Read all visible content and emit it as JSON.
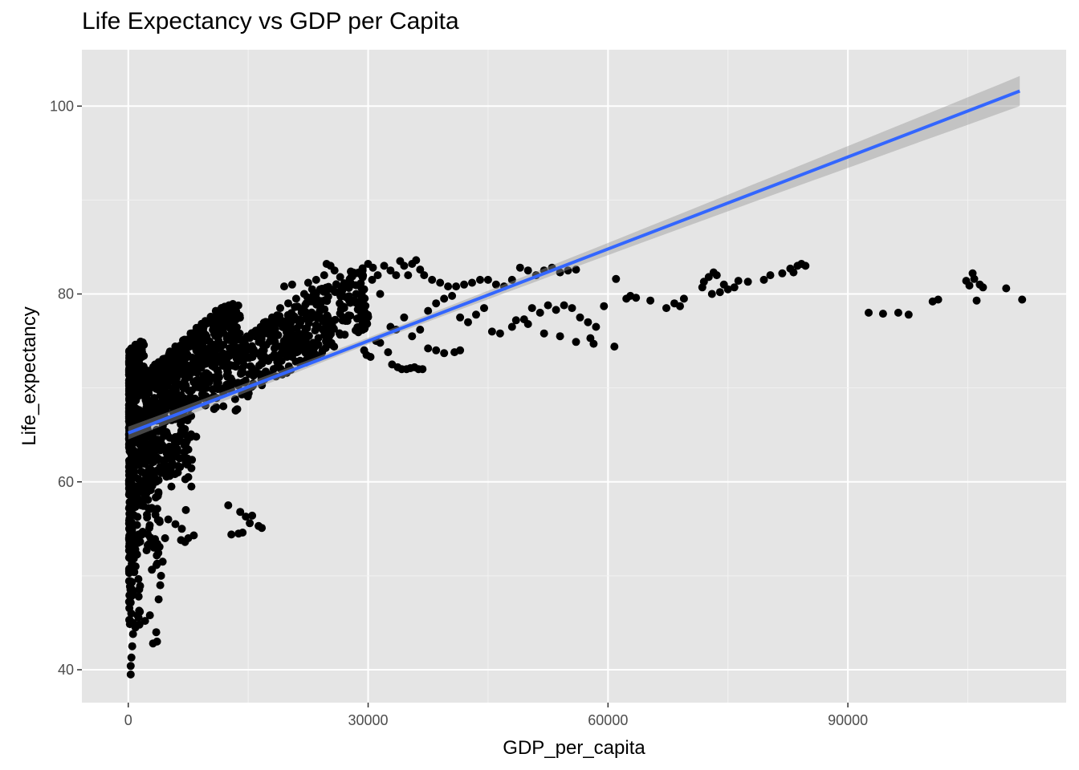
{
  "chart_data": {
    "type": "scatter",
    "title": "Life Expectancy vs GDP per Capita",
    "xlabel": "GDP_per_capita",
    "ylabel": "Life_expectancy",
    "xlim": [
      -5800,
      117300
    ],
    "ylim": [
      36.5,
      106
    ],
    "x_ticks": [
      0,
      30000,
      60000,
      90000
    ],
    "x_tick_labels": [
      "0",
      "30000",
      "60000",
      "90000"
    ],
    "y_ticks": [
      40,
      60,
      80,
      100
    ],
    "y_tick_labels": [
      "40",
      "60",
      "80",
      "100"
    ],
    "grid": true,
    "background": "#e5e5e5",
    "point_color": "#000000",
    "trend_color": "#3366ff",
    "band_color": "#999999",
    "trend": {
      "method": "linear",
      "x": [
        0,
        111500
      ],
      "y": [
        65.2,
        101.6
      ],
      "ci_halfwidth": [
        0.35,
        1.6
      ]
    },
    "points_explicit": [
      [
        300,
        39.5
      ],
      [
        300,
        40.4
      ],
      [
        400,
        41.3
      ],
      [
        500,
        42.5
      ],
      [
        600,
        43.8
      ],
      [
        900,
        44.5
      ],
      [
        1400,
        44.8
      ],
      [
        2100,
        45.2
      ],
      [
        2700,
        45.8
      ],
      [
        3100,
        42.8
      ],
      [
        3500,
        44.0
      ],
      [
        3600,
        43.0
      ],
      [
        3800,
        47.5
      ],
      [
        4000,
        49.0
      ],
      [
        3200,
        53.0
      ],
      [
        3400,
        56.5
      ],
      [
        3700,
        58.5
      ],
      [
        4100,
        50.0
      ],
      [
        4300,
        51.5
      ],
      [
        4600,
        54.0
      ],
      [
        5000,
        56.0
      ],
      [
        5400,
        59.5
      ],
      [
        5900,
        55.5
      ],
      [
        6200,
        61.0
      ],
      [
        6700,
        55.0
      ],
      [
        7200,
        57.0
      ],
      [
        6600,
        53.8
      ],
      [
        7100,
        53.6
      ],
      [
        7500,
        54.0
      ],
      [
        8200,
        54.3
      ],
      [
        7500,
        60.5
      ],
      [
        7900,
        59.5
      ],
      [
        8500,
        64.8
      ],
      [
        5500,
        62.0
      ],
      [
        6000,
        63.0
      ],
      [
        7000,
        62.5
      ],
      [
        6500,
        65.0
      ],
      [
        12500,
        57.5
      ],
      [
        12900,
        54.4
      ],
      [
        13800,
        54.5
      ],
      [
        14000,
        56.8
      ],
      [
        14300,
        54.6
      ],
      [
        14700,
        56.3
      ],
      [
        15200,
        55.6
      ],
      [
        15500,
        56.4
      ],
      [
        16300,
        55.3
      ],
      [
        16700,
        55.1
      ],
      [
        17500,
        77.0
      ],
      [
        18000,
        77.5
      ],
      [
        19000,
        78.5
      ],
      [
        20000,
        79.0
      ],
      [
        21000,
        79.5
      ],
      [
        22000,
        80.0
      ],
      [
        23000,
        80.5
      ],
      [
        24000,
        80.5
      ],
      [
        19500,
        80.8
      ],
      [
        20500,
        81.0
      ],
      [
        22500,
        81.2
      ],
      [
        23500,
        81.5
      ],
      [
        24500,
        82.0
      ],
      [
        24800,
        83.2
      ],
      [
        25300,
        83.0
      ],
      [
        25800,
        82.5
      ],
      [
        26500,
        81.8
      ],
      [
        27500,
        81.0
      ],
      [
        28500,
        80.0
      ],
      [
        29500,
        80.5
      ],
      [
        30500,
        81.5
      ],
      [
        31500,
        80.0
      ],
      [
        30000,
        83.2
      ],
      [
        30600,
        82.8
      ],
      [
        31200,
        82.0
      ],
      [
        32000,
        83.0
      ],
      [
        32800,
        82.5
      ],
      [
        33500,
        82.0
      ],
      [
        34000,
        83.5
      ],
      [
        34500,
        83.0
      ],
      [
        35000,
        82.0
      ],
      [
        35500,
        83.2
      ],
      [
        36000,
        83.6
      ],
      [
        36500,
        82.6
      ],
      [
        37000,
        82.0
      ],
      [
        38000,
        81.5
      ],
      [
        39000,
        81.2
      ],
      [
        40000,
        80.8
      ],
      [
        41000,
        80.8
      ],
      [
        42000,
        81.0
      ],
      [
        43000,
        81.2
      ],
      [
        44000,
        81.5
      ],
      [
        45000,
        81.5
      ],
      [
        46000,
        81.0
      ],
      [
        47000,
        80.8
      ],
      [
        48000,
        81.5
      ],
      [
        49000,
        82.8
      ],
      [
        50000,
        82.5
      ],
      [
        51000,
        82.0
      ],
      [
        52000,
        82.5
      ],
      [
        53000,
        82.8
      ],
      [
        54000,
        82.3
      ],
      [
        55000,
        82.5
      ],
      [
        56000,
        82.6
      ],
      [
        29500,
        74.0
      ],
      [
        29800,
        73.5
      ],
      [
        30300,
        73.3
      ],
      [
        31000,
        75.0
      ],
      [
        31500,
        74.8
      ],
      [
        32500,
        73.8
      ],
      [
        33000,
        72.5
      ],
      [
        33700,
        72.2
      ],
      [
        34200,
        72.0
      ],
      [
        34800,
        72.0
      ],
      [
        35300,
        72.1
      ],
      [
        35800,
        72.2
      ],
      [
        36300,
        72.0
      ],
      [
        36800,
        72.0
      ],
      [
        37500,
        74.2
      ],
      [
        38500,
        74.0
      ],
      [
        39500,
        73.7
      ],
      [
        40800,
        73.8
      ],
      [
        41500,
        74.0
      ],
      [
        32800,
        76.5
      ],
      [
        33500,
        76.2
      ],
      [
        34500,
        77.5
      ],
      [
        35500,
        75.5
      ],
      [
        36500,
        76.2
      ],
      [
        37500,
        78.2
      ],
      [
        38500,
        79.0
      ],
      [
        39500,
        79.5
      ],
      [
        40500,
        79.8
      ],
      [
        41500,
        77.5
      ],
      [
        42500,
        77.0
      ],
      [
        43500,
        77.8
      ],
      [
        44500,
        78.5
      ],
      [
        45500,
        76.0
      ],
      [
        46500,
        75.8
      ],
      [
        48500,
        77.2
      ],
      [
        49500,
        77.3
      ],
      [
        50500,
        78.5
      ],
      [
        51500,
        78.0
      ],
      [
        52500,
        78.8
      ],
      [
        53500,
        78.3
      ],
      [
        54500,
        78.8
      ],
      [
        55500,
        78.5
      ],
      [
        56500,
        77.5
      ],
      [
        57500,
        77.0
      ],
      [
        58500,
        76.5
      ],
      [
        48000,
        76.5
      ],
      [
        50000,
        76.8
      ],
      [
        52000,
        75.8
      ],
      [
        54000,
        75.5
      ],
      [
        56000,
        74.9
      ],
      [
        57800,
        75.3
      ],
      [
        58200,
        74.7
      ],
      [
        60800,
        74.4
      ],
      [
        59500,
        78.7
      ],
      [
        61000,
        81.6
      ],
      [
        62300,
        79.5
      ],
      [
        62800,
        79.8
      ],
      [
        63500,
        79.6
      ],
      [
        65300,
        79.3
      ],
      [
        67300,
        78.5
      ],
      [
        68300,
        79.0
      ],
      [
        69000,
        78.7
      ],
      [
        69500,
        79.5
      ],
      [
        71800,
        80.7
      ],
      [
        72000,
        81.3
      ],
      [
        72600,
        81.8
      ],
      [
        73200,
        82.3
      ],
      [
        73600,
        82.0
      ],
      [
        73000,
        80.0
      ],
      [
        74000,
        80.2
      ],
      [
        74500,
        81.0
      ],
      [
        75000,
        80.5
      ],
      [
        75800,
        80.7
      ],
      [
        76300,
        81.4
      ],
      [
        77500,
        81.3
      ],
      [
        79500,
        81.5
      ],
      [
        80300,
        82.0
      ],
      [
        81800,
        82.2
      ],
      [
        82800,
        82.7
      ],
      [
        83200,
        82.3
      ],
      [
        83700,
        83.0
      ],
      [
        84200,
        83.2
      ],
      [
        84700,
        83.0
      ],
      [
        92600,
        78.0
      ],
      [
        94400,
        77.9
      ],
      [
        96300,
        78.0
      ],
      [
        97600,
        77.8
      ],
      [
        100600,
        79.2
      ],
      [
        101300,
        79.4
      ],
      [
        104800,
        81.4
      ],
      [
        105200,
        80.9
      ],
      [
        105600,
        82.2
      ],
      [
        105800,
        81.6
      ],
      [
        106100,
        79.3
      ],
      [
        106500,
        81.0
      ],
      [
        106900,
        80.7
      ],
      [
        109800,
        80.6
      ],
      [
        111800,
        79.4
      ]
    ]
  }
}
